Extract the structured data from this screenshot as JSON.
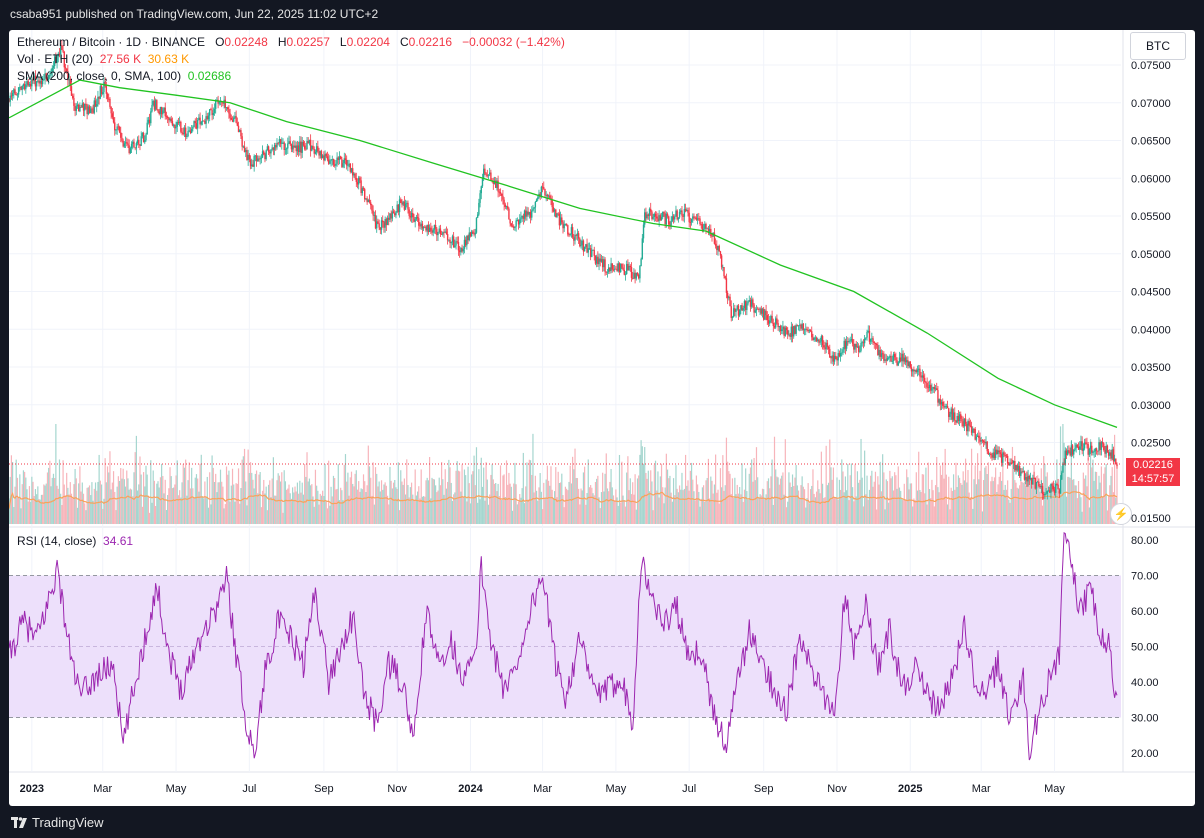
{
  "header": {
    "text": "csaba951 published on TradingView.com, Jun 22, 2025 11:02 UTC+2"
  },
  "footer": {
    "brand": "TradingView"
  },
  "price_legend": {
    "symbol": "Ethereum / Bitcoin · 1D · BINANCE",
    "o_label": "O",
    "o": "0.02248",
    "h_label": "H",
    "h": "0.02257",
    "l_label": "L",
    "l": "0.02204",
    "c_label": "C",
    "c": "0.02216",
    "change": "−0.00032 (−1.42%)"
  },
  "vol_legend": {
    "label": "Vol · ETH (20)",
    "v1": "27.56 K",
    "v2": "30.63 K"
  },
  "sma_legend": {
    "label": "SMA (200, close, 0, SMA, 100)",
    "value": "0.02686"
  },
  "rsi_legend": {
    "label": "RSI (14, close)",
    "value": "34.61"
  },
  "currency_button": "BTC",
  "last_price": {
    "value": "0.02216",
    "countdown": "14:57:57"
  },
  "colors": {
    "up": "#22ab94",
    "down": "#f23645",
    "sma": "#21c321",
    "vol_ma": "#f7a35c",
    "rsi": "#9c27b0",
    "rsi_band": "#ede0fb"
  },
  "chart_data": [
    {
      "type": "candlestick",
      "title": "Ethereum / Bitcoin · 1D · BINANCE",
      "price_ticks": [
        "0.07500",
        "0.07000",
        "0.06500",
        "0.06000",
        "0.05500",
        "0.05000",
        "0.04500",
        "0.04000",
        "0.03500",
        "0.03000",
        "0.02500",
        "0.01500"
      ],
      "ylim": [
        0.0145,
        0.0795
      ],
      "x_labels": [
        "2023",
        "Mar",
        "May",
        "Jul",
        "Sep",
        "Nov",
        "2024",
        "Mar",
        "May",
        "Jul",
        "Sep",
        "Nov",
        "2025",
        "Mar",
        "May"
      ],
      "x_range": [
        "2022-12-13",
        "2025-06-22"
      ],
      "close_path": [
        [
          "2022-12-13",
          0.0705
        ],
        [
          "2022-12-28",
          0.0725
        ],
        [
          "2023-01-15",
          0.0735
        ],
        [
          "2023-01-25",
          0.0775
        ],
        [
          "2023-02-05",
          0.0695
        ],
        [
          "2023-02-20",
          0.069
        ],
        [
          "2023-03-02",
          0.0725
        ],
        [
          "2023-03-12",
          0.0665
        ],
        [
          "2023-03-22",
          0.064
        ],
        [
          "2023-04-05",
          0.0655
        ],
        [
          "2023-04-12",
          0.07
        ],
        [
          "2023-04-25",
          0.068
        ],
        [
          "2023-05-10",
          0.066
        ],
        [
          "2023-05-25",
          0.068
        ],
        [
          "2023-06-08",
          0.0705
        ],
        [
          "2023-06-18",
          0.068
        ],
        [
          "2023-07-01",
          0.062
        ],
        [
          "2023-07-12",
          0.063
        ],
        [
          "2023-07-25",
          0.0645
        ],
        [
          "2023-08-10",
          0.064
        ],
        [
          "2023-08-20",
          0.0645
        ],
        [
          "2023-09-05",
          0.0625
        ],
        [
          "2023-09-20",
          0.062
        ],
        [
          "2023-10-05",
          0.058
        ],
        [
          "2023-10-15",
          0.0535
        ],
        [
          "2023-10-25",
          0.0545
        ],
        [
          "2023-11-05",
          0.057
        ],
        [
          "2023-11-20",
          0.054
        ],
        [
          "2023-12-10",
          0.0525
        ],
        [
          "2023-12-25",
          0.0505
        ],
        [
          "2024-01-05",
          0.0535
        ],
        [
          "2024-01-12",
          0.0605
        ],
        [
          "2024-01-22",
          0.0595
        ],
        [
          "2024-02-05",
          0.054
        ],
        [
          "2024-02-20",
          0.0555
        ],
        [
          "2024-03-01",
          0.059
        ],
        [
          "2024-03-15",
          0.0545
        ],
        [
          "2024-03-30",
          0.052
        ],
        [
          "2024-04-10",
          0.05
        ],
        [
          "2024-04-25",
          0.048
        ],
        [
          "2024-05-10",
          0.048
        ],
        [
          "2024-05-20",
          0.0465
        ],
        [
          "2024-05-25",
          0.0555
        ],
        [
          "2024-06-05",
          0.055
        ],
        [
          "2024-06-15",
          0.0545
        ],
        [
          "2024-06-25",
          0.0555
        ],
        [
          "2024-07-05",
          0.0545
        ],
        [
          "2024-07-20",
          0.0525
        ],
        [
          "2024-07-28",
          0.049
        ],
        [
          "2024-08-05",
          0.042
        ],
        [
          "2024-08-20",
          0.0435
        ],
        [
          "2024-09-05",
          0.0415
        ],
        [
          "2024-09-20",
          0.0395
        ],
        [
          "2024-10-05",
          0.04
        ],
        [
          "2024-10-20",
          0.0385
        ],
        [
          "2024-10-30",
          0.036
        ],
        [
          "2024-11-10",
          0.0385
        ],
        [
          "2024-11-20",
          0.0375
        ],
        [
          "2024-11-25",
          0.0395
        ],
        [
          "2024-12-05",
          0.037
        ],
        [
          "2024-12-15",
          0.036
        ],
        [
          "2024-12-25",
          0.036
        ],
        [
          "2025-01-05",
          0.0345
        ],
        [
          "2025-01-20",
          0.032
        ],
        [
          "2025-02-01",
          0.029
        ],
        [
          "2025-02-12",
          0.028
        ],
        [
          "2025-02-25",
          0.026
        ],
        [
          "2025-03-10",
          0.0235
        ],
        [
          "2025-03-25",
          0.0225
        ],
        [
          "2025-04-08",
          0.0205
        ],
        [
          "2025-04-22",
          0.0185
        ],
        [
          "2025-05-05",
          0.019
        ],
        [
          "2025-05-10",
          0.0235
        ],
        [
          "2025-05-20",
          0.0245
        ],
        [
          "2025-06-01",
          0.024
        ],
        [
          "2025-06-10",
          0.0245
        ],
        [
          "2025-06-18",
          0.0235
        ],
        [
          "2025-06-22",
          0.0222
        ]
      ],
      "sma200_path": [
        [
          "2022-12-13",
          0.068
        ],
        [
          "2023-02-10",
          0.073
        ],
        [
          "2023-03-15",
          0.072
        ],
        [
          "2023-05-01",
          0.071
        ],
        [
          "2023-06-15",
          0.07
        ],
        [
          "2023-08-01",
          0.0675
        ],
        [
          "2023-10-01",
          0.065
        ],
        [
          "2023-12-01",
          0.062
        ],
        [
          "2024-02-01",
          0.059
        ],
        [
          "2024-04-01",
          0.056
        ],
        [
          "2024-06-01",
          0.054
        ],
        [
          "2024-07-15",
          0.053
        ],
        [
          "2024-09-15",
          0.0485
        ],
        [
          "2024-11-15",
          0.045
        ],
        [
          "2025-01-15",
          0.0395
        ],
        [
          "2025-03-15",
          0.0335
        ],
        [
          "2025-05-01",
          0.03
        ],
        [
          "2025-06-22",
          0.027
        ]
      ]
    },
    {
      "type": "bar",
      "title": "Vol · ETH (20)",
      "values_note": "daily volume histogram with 20-period MA line"
    },
    {
      "type": "line",
      "title": "RSI (14, close)",
      "y_ticks": [
        "80.00",
        "70.00",
        "60.00",
        "50.00",
        "40.00",
        "30.00",
        "20.00"
      ],
      "ylim": [
        15,
        83
      ],
      "band": [
        30,
        70
      ],
      "mid": 50,
      "points": [
        [
          "2022-12-13",
          47
        ],
        [
          "2022-12-25",
          57
        ],
        [
          "2023-01-05",
          52
        ],
        [
          "2023-01-15",
          63
        ],
        [
          "2023-01-22",
          72
        ],
        [
          "2023-02-01",
          50
        ],
        [
          "2023-02-10",
          36
        ],
        [
          "2023-02-25",
          42
        ],
        [
          "2023-03-10",
          45
        ],
        [
          "2023-03-18",
          22
        ],
        [
          "2023-03-25",
          35
        ],
        [
          "2023-04-05",
          52
        ],
        [
          "2023-04-15",
          67
        ],
        [
          "2023-04-25",
          48
        ],
        [
          "2023-05-05",
          38
        ],
        [
          "2023-05-20",
          52
        ],
        [
          "2023-06-05",
          62
        ],
        [
          "2023-06-12",
          70
        ],
        [
          "2023-06-20",
          48
        ],
        [
          "2023-06-28",
          30
        ],
        [
          "2023-07-05",
          19
        ],
        [
          "2023-07-15",
          45
        ],
        [
          "2023-07-25",
          57
        ],
        [
          "2023-08-05",
          52
        ],
        [
          "2023-08-15",
          45
        ],
        [
          "2023-08-25",
          66
        ],
        [
          "2023-09-05",
          40
        ],
        [
          "2023-09-15",
          50
        ],
        [
          "2023-09-25",
          58
        ],
        [
          "2023-10-05",
          36
        ],
        [
          "2023-10-15",
          28
        ],
        [
          "2023-10-25",
          45
        ],
        [
          "2023-11-05",
          40
        ],
        [
          "2023-11-15",
          23
        ],
        [
          "2023-11-25",
          60
        ],
        [
          "2023-12-05",
          45
        ],
        [
          "2023-12-15",
          52
        ],
        [
          "2023-12-25",
          42
        ],
        [
          "2024-01-05",
          46
        ],
        [
          "2024-01-10",
          73
        ],
        [
          "2024-01-18",
          52
        ],
        [
          "2024-01-28",
          38
        ],
        [
          "2024-02-08",
          44
        ],
        [
          "2024-02-18",
          58
        ],
        [
          "2024-03-01",
          71
        ],
        [
          "2024-03-10",
          48
        ],
        [
          "2024-03-20",
          36
        ],
        [
          "2024-04-01",
          52
        ],
        [
          "2024-04-10",
          40
        ],
        [
          "2024-04-20",
          36
        ],
        [
          "2024-05-05",
          42
        ],
        [
          "2024-05-15",
          29
        ],
        [
          "2024-05-22",
          74
        ],
        [
          "2024-06-01",
          63
        ],
        [
          "2024-06-10",
          56
        ],
        [
          "2024-06-20",
          62
        ],
        [
          "2024-07-01",
          45
        ],
        [
          "2024-07-10",
          50
        ],
        [
          "2024-07-20",
          33
        ],
        [
          "2024-08-01",
          22
        ],
        [
          "2024-08-10",
          40
        ],
        [
          "2024-08-20",
          54
        ],
        [
          "2024-09-01",
          44
        ],
        [
          "2024-09-10",
          38
        ],
        [
          "2024-09-20",
          32
        ],
        [
          "2024-10-01",
          52
        ],
        [
          "2024-10-10",
          44
        ],
        [
          "2024-10-20",
          36
        ],
        [
          "2024-10-30",
          32
        ],
        [
          "2024-11-08",
          66
        ],
        [
          "2024-11-15",
          50
        ],
        [
          "2024-11-25",
          62
        ],
        [
          "2024-12-05",
          44
        ],
        [
          "2024-12-15",
          55
        ],
        [
          "2024-12-25",
          38
        ],
        [
          "2025-01-05",
          44
        ],
        [
          "2025-01-15",
          36
        ],
        [
          "2025-01-25",
          32
        ],
        [
          "2025-02-05",
          42
        ],
        [
          "2025-02-15",
          55
        ],
        [
          "2025-02-25",
          38
        ],
        [
          "2025-03-05",
          36
        ],
        [
          "2025-03-15",
          45
        ],
        [
          "2025-03-25",
          30
        ],
        [
          "2025-04-05",
          41
        ],
        [
          "2025-04-10",
          21
        ],
        [
          "2025-04-20",
          33
        ],
        [
          "2025-04-28",
          44
        ],
        [
          "2025-05-05",
          47
        ],
        [
          "2025-05-09",
          81
        ],
        [
          "2025-05-15",
          74
        ],
        [
          "2025-05-22",
          60
        ],
        [
          "2025-06-01",
          66
        ],
        [
          "2025-06-08",
          52
        ],
        [
          "2025-06-15",
          50
        ],
        [
          "2025-06-22",
          35
        ]
      ]
    }
  ]
}
